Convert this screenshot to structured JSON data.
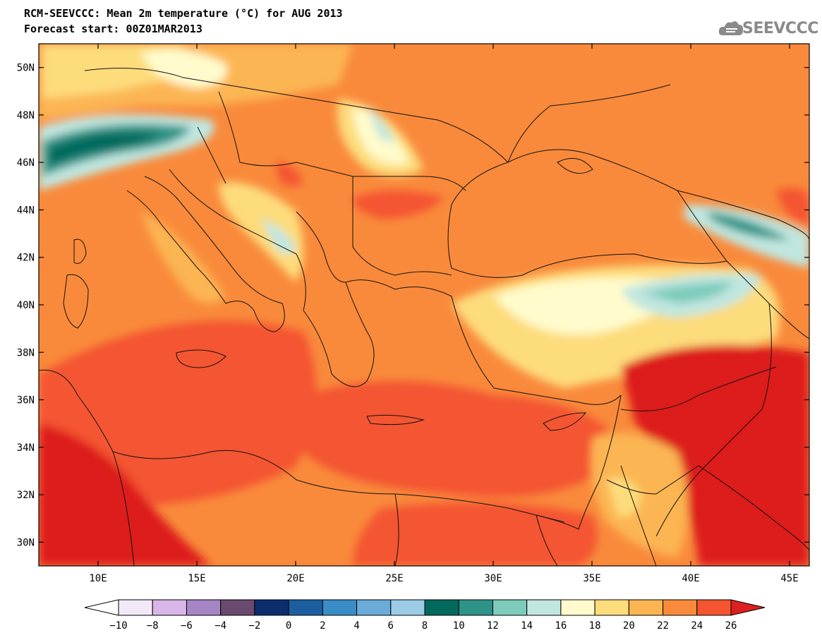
{
  "header": {
    "title_line1": "RCM-SEEVCCC: Mean 2m temperature (°C) for AUG 2013",
    "title_line2": "Forecast start: 00Z01MAR2013",
    "logo_text": "SEEVCCC",
    "logo_icon": "cloud-icon"
  },
  "map": {
    "lon_range": [
      7,
      46
    ],
    "lat_range": [
      29,
      51
    ],
    "lat_ticks": [
      {
        "value": 50,
        "label": "50N"
      },
      {
        "value": 48,
        "label": "48N"
      },
      {
        "value": 46,
        "label": "46N"
      },
      {
        "value": 44,
        "label": "44N"
      },
      {
        "value": 42,
        "label": "42N"
      },
      {
        "value": 40,
        "label": "40N"
      },
      {
        "value": 38,
        "label": "38N"
      },
      {
        "value": 36,
        "label": "36N"
      },
      {
        "value": 34,
        "label": "34N"
      },
      {
        "value": 32,
        "label": "32N"
      },
      {
        "value": 30,
        "label": "30N"
      }
    ],
    "lon_ticks": [
      {
        "value": 10,
        "label": "10E"
      },
      {
        "value": 15,
        "label": "15E"
      },
      {
        "value": 20,
        "label": "20E"
      },
      {
        "value": 25,
        "label": "25E"
      },
      {
        "value": 30,
        "label": "30E"
      },
      {
        "value": 35,
        "label": "35E"
      },
      {
        "value": 40,
        "label": "40E"
      },
      {
        "value": 45,
        "label": "45E"
      }
    ]
  },
  "colorbar": {
    "labels": [
      "−10",
      "−8",
      "−6",
      "−4",
      "−2",
      "0",
      "2",
      "4",
      "6",
      "8",
      "10",
      "12",
      "14",
      "16",
      "18",
      "20",
      "22",
      "24",
      "26"
    ],
    "under_color": "#ffffff",
    "over_color": "#dd1f1f",
    "colors": [
      "#f3e8f7",
      "#d9b6e8",
      "#a585c4",
      "#6a4a6e",
      "#0c2e6e",
      "#1c5fa0",
      "#3a8cc6",
      "#6aabd8",
      "#9ccbe6",
      "#00695c",
      "#2f9488",
      "#7ccbbb",
      "#c0e6e0",
      "#fffbcc",
      "#fddc7c",
      "#fcb552",
      "#f98a3b",
      "#f45530"
    ]
  },
  "fields": {
    "background_color": "#f98a3b"
  }
}
